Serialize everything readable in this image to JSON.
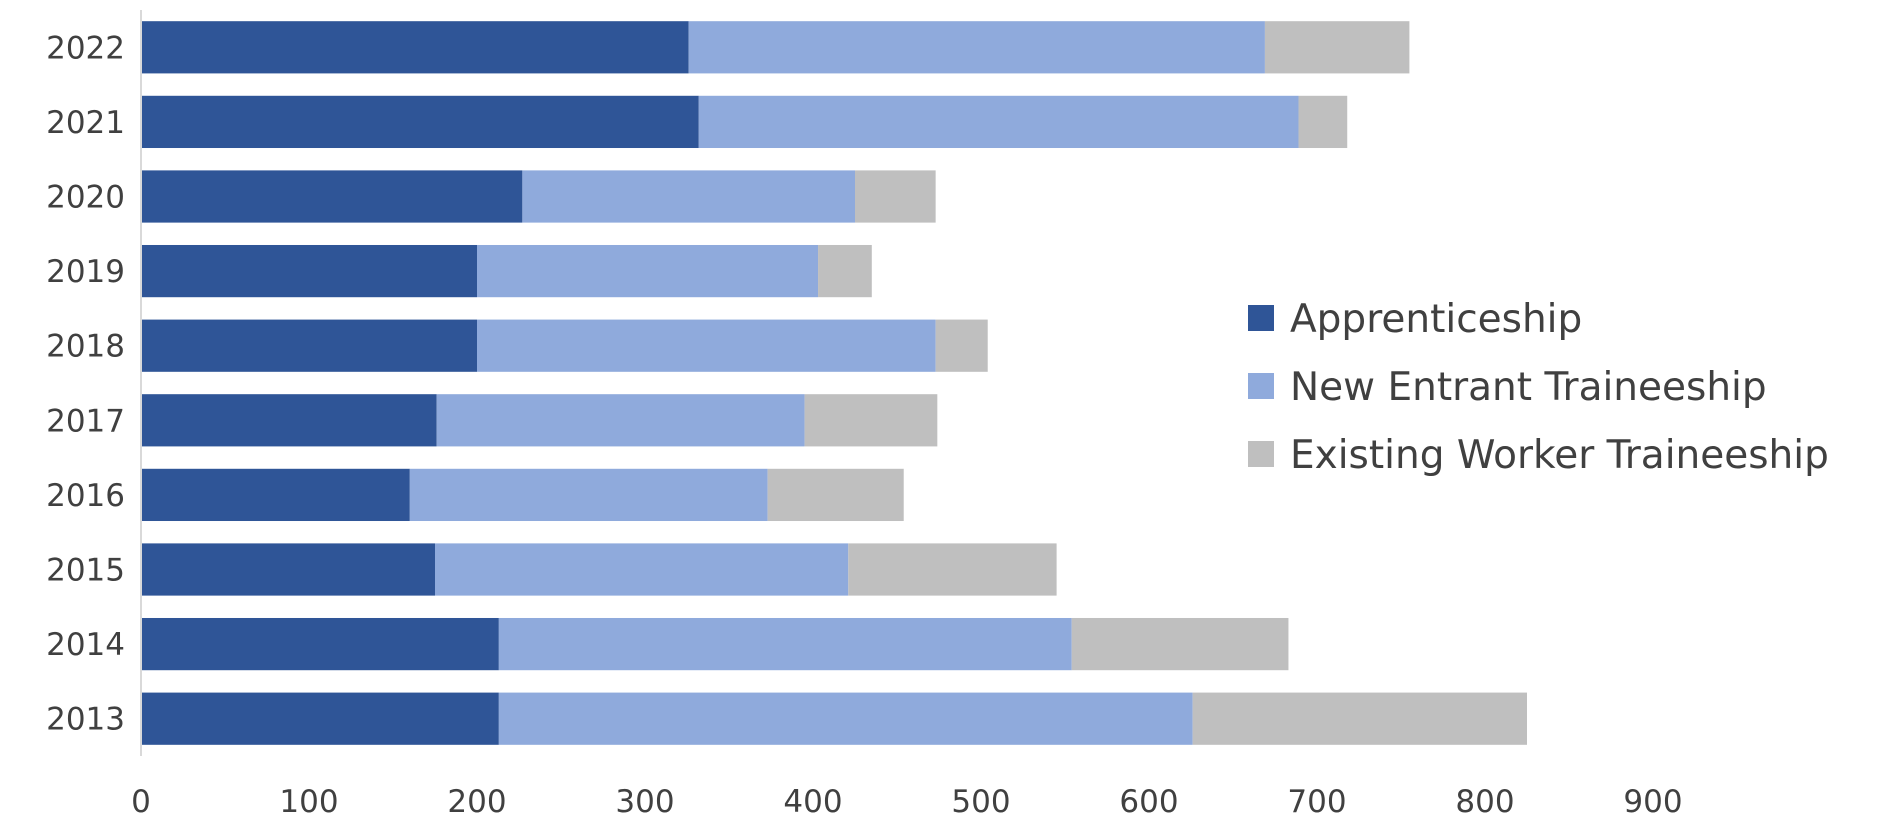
{
  "chart_data": {
    "type": "bar",
    "orientation": "horizontal",
    "stacked": true,
    "categories": [
      "2022",
      "2021",
      "2020",
      "2019",
      "2018",
      "2017",
      "2016",
      "2015",
      "2014",
      "2013"
    ],
    "series": [
      {
        "name": "Apprenticeship",
        "color": "#2f5597",
        "values": [
          326,
          332,
          227,
          200,
          200,
          176,
          160,
          175,
          213,
          213
        ]
      },
      {
        "name": "New Entrant Traineeship",
        "color": "#8faadc",
        "values": [
          343,
          357,
          198,
          203,
          273,
          219,
          213,
          246,
          341,
          413
        ]
      },
      {
        "name": "Existing Worker Traineeship",
        "color": "#bfbfbf",
        "values": [
          86,
          29,
          48,
          32,
          31,
          79,
          81,
          124,
          129,
          199
        ]
      }
    ],
    "xlim": [
      0,
      900
    ],
    "x_ticks": [
      "0",
      "100",
      "200",
      "300",
      "400",
      "500",
      "600",
      "700",
      "800",
      "900"
    ],
    "grid": false,
    "legend_position": "right"
  }
}
